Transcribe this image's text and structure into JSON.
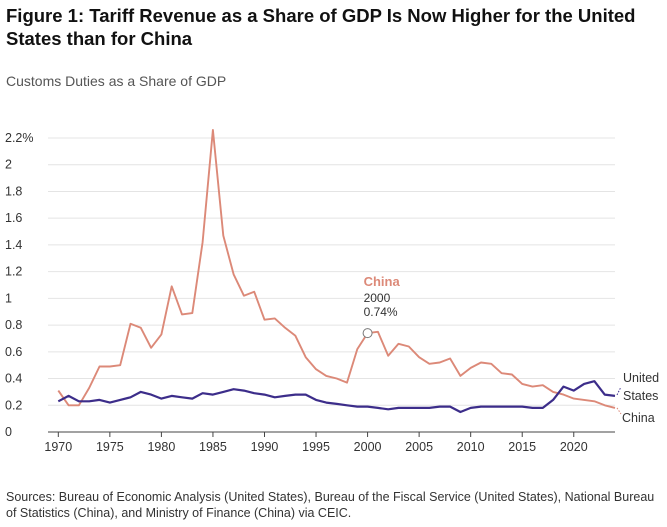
{
  "title": {
    "figure_label": "Figure 1:",
    "text": "Tariff Revenue as a Share of GDP Is Now Higher for the United States than for China"
  },
  "subtitle": "Customs Duties as a Share of GDP",
  "source": "Sources: Bureau of Economic Analysis (United States), Bureau of the Fiscal Service (United States), National Bureau of Statistics (China), and Ministry of Finance (China) via CEIC.",
  "annotation": {
    "series": "China",
    "year": "2000",
    "value": "0.74%"
  },
  "colors": {
    "china": "#dc8978",
    "us": "#3c2d8a",
    "grid": "#e4e4e4",
    "axis": "#444444"
  },
  "chart_data": {
    "type": "line",
    "title": "Customs Duties as a Share of GDP",
    "xlabel": "",
    "ylabel": "",
    "xlim": [
      1969,
      2024
    ],
    "ylim": [
      0,
      2.2
    ],
    "grid": true,
    "x_ticks": [
      "1970",
      "1975",
      "1980",
      "1985",
      "1990",
      "1995",
      "2000",
      "2005",
      "2010",
      "2015",
      "2020"
    ],
    "y_ticks": [
      "0",
      "0.2",
      "0.4",
      "0.6",
      "0.8",
      "1",
      "1.2",
      "1.4",
      "1.6",
      "1.8",
      "2",
      "2.2%"
    ],
    "x": [
      1970,
      1971,
      1972,
      1973,
      1974,
      1975,
      1976,
      1977,
      1978,
      1979,
      1980,
      1981,
      1982,
      1983,
      1984,
      1985,
      1986,
      1987,
      1988,
      1989,
      1990,
      1991,
      1992,
      1993,
      1994,
      1995,
      1996,
      1997,
      1998,
      1999,
      2000,
      2001,
      2002,
      2003,
      2004,
      2005,
      2006,
      2007,
      2008,
      2009,
      2010,
      2011,
      2012,
      2013,
      2014,
      2015,
      2016,
      2017,
      2018,
      2019,
      2020,
      2021,
      2022,
      2023,
      2024
    ],
    "series": [
      {
        "name": "China",
        "label_lines": [
          "China"
        ],
        "values": [
          0.31,
          0.2,
          0.2,
          0.33,
          0.49,
          0.49,
          0.5,
          0.81,
          0.78,
          0.63,
          0.73,
          1.09,
          0.88,
          0.89,
          1.42,
          2.26,
          1.47,
          1.18,
          1.02,
          1.05,
          0.84,
          0.85,
          0.78,
          0.72,
          0.56,
          0.47,
          0.42,
          0.4,
          0.37,
          0.62,
          0.74,
          0.75,
          0.57,
          0.66,
          0.64,
          0.56,
          0.51,
          0.52,
          0.55,
          0.42,
          0.48,
          0.52,
          0.51,
          0.44,
          0.43,
          0.36,
          0.34,
          0.35,
          0.3,
          0.28,
          0.25,
          0.24,
          0.23,
          0.2,
          0.18
        ]
      },
      {
        "name": "United States",
        "label_lines": [
          "United",
          "States"
        ],
        "values": [
          0.23,
          0.27,
          0.23,
          0.23,
          0.24,
          0.22,
          0.24,
          0.26,
          0.3,
          0.28,
          0.25,
          0.27,
          0.26,
          0.25,
          0.29,
          0.28,
          0.3,
          0.32,
          0.31,
          0.29,
          0.28,
          0.26,
          0.27,
          0.28,
          0.28,
          0.24,
          0.22,
          0.21,
          0.2,
          0.19,
          0.19,
          0.18,
          0.17,
          0.18,
          0.18,
          0.18,
          0.18,
          0.19,
          0.19,
          0.15,
          0.18,
          0.19,
          0.19,
          0.19,
          0.19,
          0.19,
          0.18,
          0.18,
          0.24,
          0.34,
          0.31,
          0.36,
          0.38,
          0.28,
          0.27
        ]
      }
    ]
  }
}
